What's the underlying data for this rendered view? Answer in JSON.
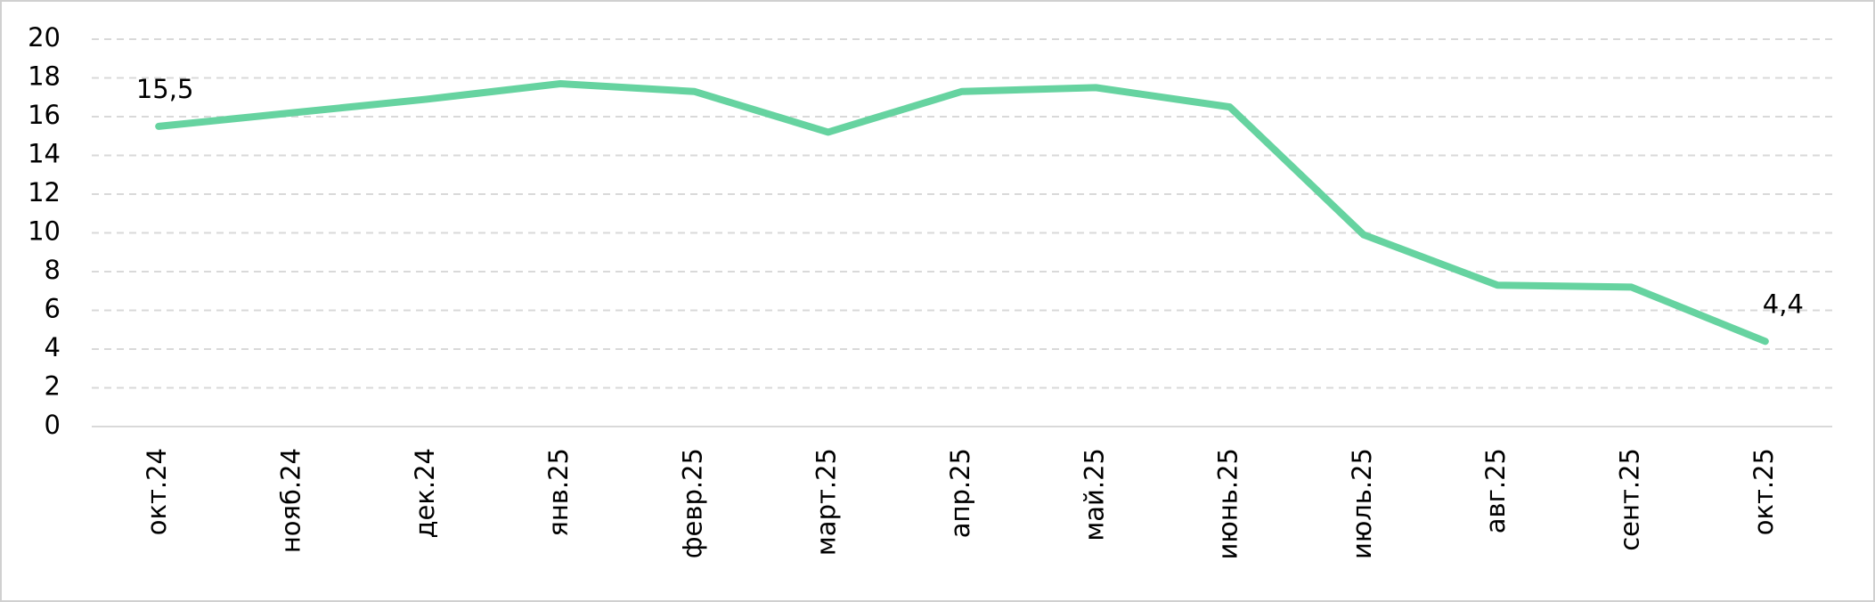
{
  "chart_data": {
    "type": "line",
    "categories": [
      "окт.24",
      "нояб.24",
      "дек.24",
      "янв.25",
      "февр.25",
      "март.25",
      "апр.25",
      "май.25",
      "июнь.25",
      "июль.25",
      "авг.25",
      "сент.25",
      "окт.25"
    ],
    "series": [
      {
        "color": "#66d3a0",
        "values": [
          15.5,
          16.2,
          16.9,
          17.7,
          17.3,
          15.2,
          17.3,
          17.5,
          16.5,
          9.9,
          7.3,
          7.2,
          4.4
        ],
        "value_labels": [
          "15,5",
          null,
          null,
          null,
          null,
          null,
          null,
          null,
          null,
          null,
          null,
          null,
          "4,4"
        ]
      }
    ],
    "ylim": [
      0,
      20
    ],
    "yticks": [
      0,
      2,
      4,
      6,
      8,
      10,
      12,
      14,
      16,
      18,
      20
    ],
    "grid": true
  }
}
